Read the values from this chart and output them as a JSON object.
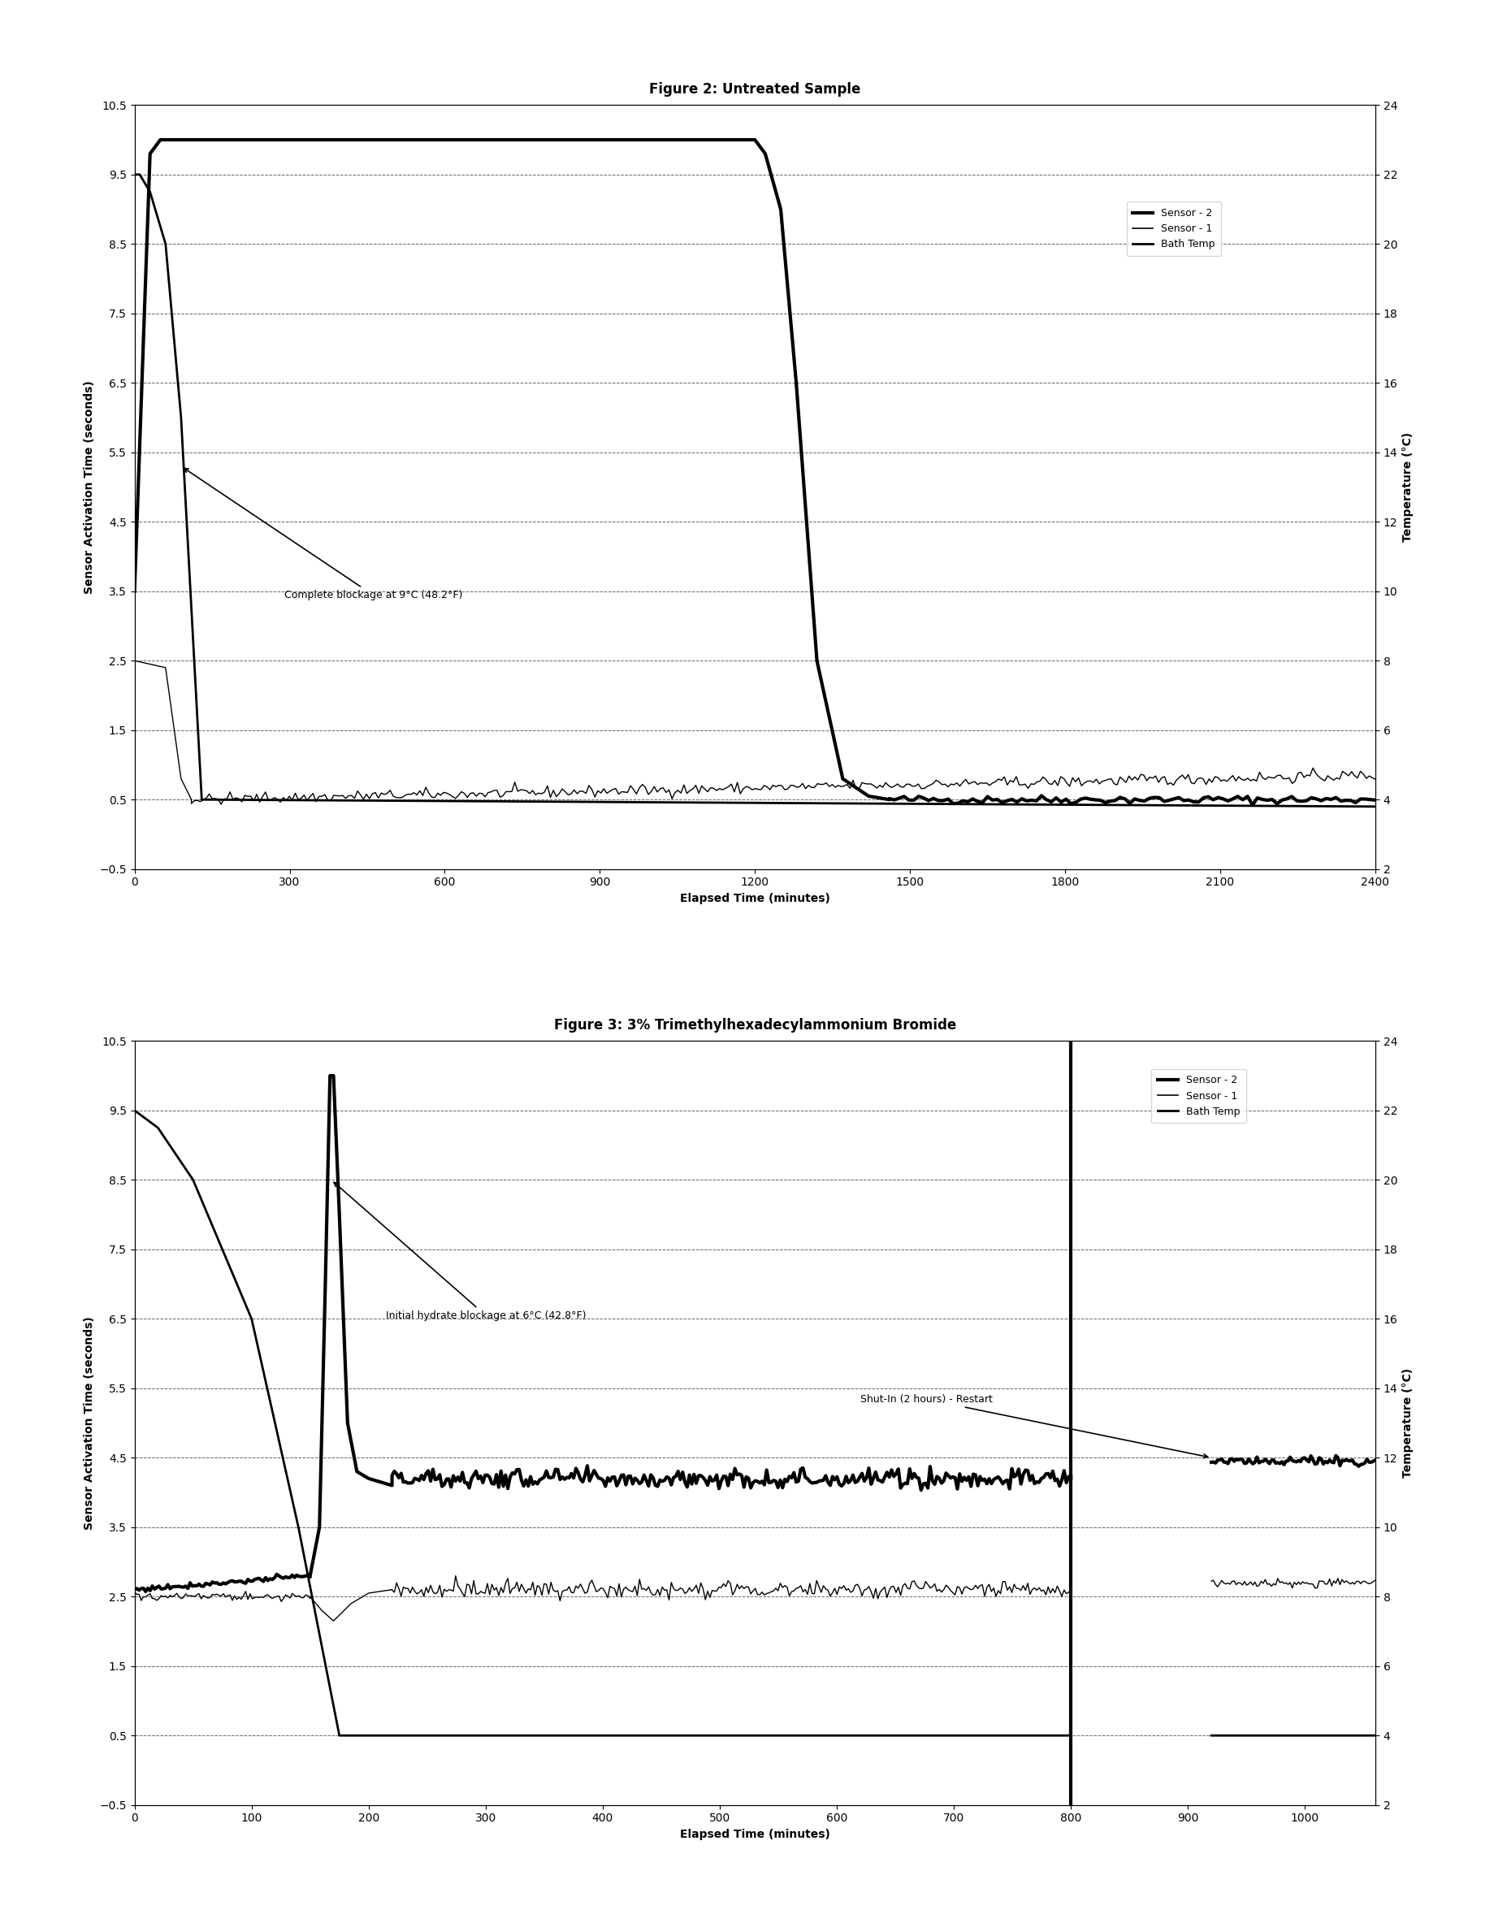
{
  "fig1_title": "Figure 2: Untreated Sample",
  "fig2_title": "Figure 3: 3% Trimethylhexadecylammonium Bromide",
  "xlabel": "Elapsed Time (minutes)",
  "ylabel_left": "Sensor Activation Time (seconds)",
  "ylabel_right": "Temperature (°C)",
  "ylim_left": [
    -0.5,
    10.5
  ],
  "ylim_right": [
    2,
    24
  ],
  "fig1_annotation": "Complete blockage at 9°C (48.2°F)",
  "fig2_annotation1": "Initial hydrate blockage at 6°C (42.8°F)",
  "fig2_annotation2": "Shut-In (2 hours) - Restart",
  "background_color": "#ffffff",
  "title_fontsize": 12,
  "axis_label_fontsize": 10,
  "tick_fontsize": 10
}
